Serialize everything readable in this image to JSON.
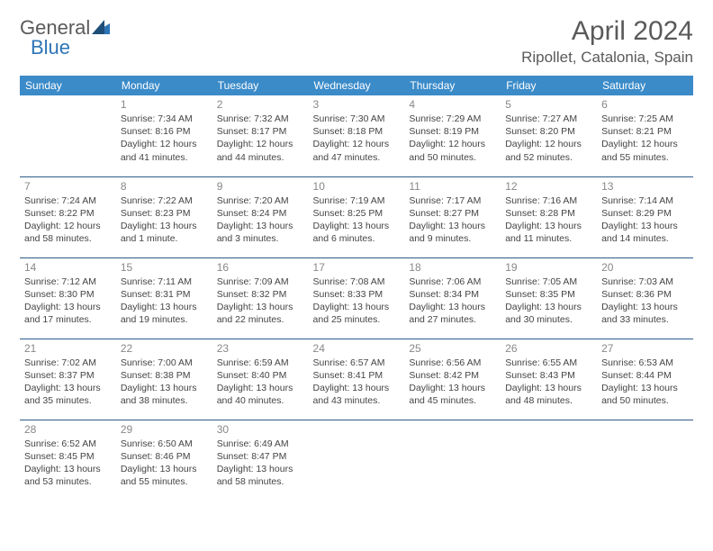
{
  "logo": {
    "text1": "General",
    "text2": "Blue"
  },
  "title": "April 2024",
  "location": "Ripollet, Catalonia, Spain",
  "colors": {
    "header_bg": "#3b8bc9",
    "header_text": "#ffffff",
    "border": "#2e5c8a",
    "daynum": "#888888",
    "body_text": "#444444",
    "logo_gray": "#5a5a5a",
    "logo_blue": "#2e75b6",
    "background": "#ffffff"
  },
  "day_headers": [
    "Sunday",
    "Monday",
    "Tuesday",
    "Wednesday",
    "Thursday",
    "Friday",
    "Saturday"
  ],
  "weeks": [
    [
      null,
      {
        "n": "1",
        "sr": "Sunrise: 7:34 AM",
        "ss": "Sunset: 8:16 PM",
        "dl1": "Daylight: 12 hours",
        "dl2": "and 41 minutes."
      },
      {
        "n": "2",
        "sr": "Sunrise: 7:32 AM",
        "ss": "Sunset: 8:17 PM",
        "dl1": "Daylight: 12 hours",
        "dl2": "and 44 minutes."
      },
      {
        "n": "3",
        "sr": "Sunrise: 7:30 AM",
        "ss": "Sunset: 8:18 PM",
        "dl1": "Daylight: 12 hours",
        "dl2": "and 47 minutes."
      },
      {
        "n": "4",
        "sr": "Sunrise: 7:29 AM",
        "ss": "Sunset: 8:19 PM",
        "dl1": "Daylight: 12 hours",
        "dl2": "and 50 minutes."
      },
      {
        "n": "5",
        "sr": "Sunrise: 7:27 AM",
        "ss": "Sunset: 8:20 PM",
        "dl1": "Daylight: 12 hours",
        "dl2": "and 52 minutes."
      },
      {
        "n": "6",
        "sr": "Sunrise: 7:25 AM",
        "ss": "Sunset: 8:21 PM",
        "dl1": "Daylight: 12 hours",
        "dl2": "and 55 minutes."
      }
    ],
    [
      {
        "n": "7",
        "sr": "Sunrise: 7:24 AM",
        "ss": "Sunset: 8:22 PM",
        "dl1": "Daylight: 12 hours",
        "dl2": "and 58 minutes."
      },
      {
        "n": "8",
        "sr": "Sunrise: 7:22 AM",
        "ss": "Sunset: 8:23 PM",
        "dl1": "Daylight: 13 hours",
        "dl2": "and 1 minute."
      },
      {
        "n": "9",
        "sr": "Sunrise: 7:20 AM",
        "ss": "Sunset: 8:24 PM",
        "dl1": "Daylight: 13 hours",
        "dl2": "and 3 minutes."
      },
      {
        "n": "10",
        "sr": "Sunrise: 7:19 AM",
        "ss": "Sunset: 8:25 PM",
        "dl1": "Daylight: 13 hours",
        "dl2": "and 6 minutes."
      },
      {
        "n": "11",
        "sr": "Sunrise: 7:17 AM",
        "ss": "Sunset: 8:27 PM",
        "dl1": "Daylight: 13 hours",
        "dl2": "and 9 minutes."
      },
      {
        "n": "12",
        "sr": "Sunrise: 7:16 AM",
        "ss": "Sunset: 8:28 PM",
        "dl1": "Daylight: 13 hours",
        "dl2": "and 11 minutes."
      },
      {
        "n": "13",
        "sr": "Sunrise: 7:14 AM",
        "ss": "Sunset: 8:29 PM",
        "dl1": "Daylight: 13 hours",
        "dl2": "and 14 minutes."
      }
    ],
    [
      {
        "n": "14",
        "sr": "Sunrise: 7:12 AM",
        "ss": "Sunset: 8:30 PM",
        "dl1": "Daylight: 13 hours",
        "dl2": "and 17 minutes."
      },
      {
        "n": "15",
        "sr": "Sunrise: 7:11 AM",
        "ss": "Sunset: 8:31 PM",
        "dl1": "Daylight: 13 hours",
        "dl2": "and 19 minutes."
      },
      {
        "n": "16",
        "sr": "Sunrise: 7:09 AM",
        "ss": "Sunset: 8:32 PM",
        "dl1": "Daylight: 13 hours",
        "dl2": "and 22 minutes."
      },
      {
        "n": "17",
        "sr": "Sunrise: 7:08 AM",
        "ss": "Sunset: 8:33 PM",
        "dl1": "Daylight: 13 hours",
        "dl2": "and 25 minutes."
      },
      {
        "n": "18",
        "sr": "Sunrise: 7:06 AM",
        "ss": "Sunset: 8:34 PM",
        "dl1": "Daylight: 13 hours",
        "dl2": "and 27 minutes."
      },
      {
        "n": "19",
        "sr": "Sunrise: 7:05 AM",
        "ss": "Sunset: 8:35 PM",
        "dl1": "Daylight: 13 hours",
        "dl2": "and 30 minutes."
      },
      {
        "n": "20",
        "sr": "Sunrise: 7:03 AM",
        "ss": "Sunset: 8:36 PM",
        "dl1": "Daylight: 13 hours",
        "dl2": "and 33 minutes."
      }
    ],
    [
      {
        "n": "21",
        "sr": "Sunrise: 7:02 AM",
        "ss": "Sunset: 8:37 PM",
        "dl1": "Daylight: 13 hours",
        "dl2": "and 35 minutes."
      },
      {
        "n": "22",
        "sr": "Sunrise: 7:00 AM",
        "ss": "Sunset: 8:38 PM",
        "dl1": "Daylight: 13 hours",
        "dl2": "and 38 minutes."
      },
      {
        "n": "23",
        "sr": "Sunrise: 6:59 AM",
        "ss": "Sunset: 8:40 PM",
        "dl1": "Daylight: 13 hours",
        "dl2": "and 40 minutes."
      },
      {
        "n": "24",
        "sr": "Sunrise: 6:57 AM",
        "ss": "Sunset: 8:41 PM",
        "dl1": "Daylight: 13 hours",
        "dl2": "and 43 minutes."
      },
      {
        "n": "25",
        "sr": "Sunrise: 6:56 AM",
        "ss": "Sunset: 8:42 PM",
        "dl1": "Daylight: 13 hours",
        "dl2": "and 45 minutes."
      },
      {
        "n": "26",
        "sr": "Sunrise: 6:55 AM",
        "ss": "Sunset: 8:43 PM",
        "dl1": "Daylight: 13 hours",
        "dl2": "and 48 minutes."
      },
      {
        "n": "27",
        "sr": "Sunrise: 6:53 AM",
        "ss": "Sunset: 8:44 PM",
        "dl1": "Daylight: 13 hours",
        "dl2": "and 50 minutes."
      }
    ],
    [
      {
        "n": "28",
        "sr": "Sunrise: 6:52 AM",
        "ss": "Sunset: 8:45 PM",
        "dl1": "Daylight: 13 hours",
        "dl2": "and 53 minutes."
      },
      {
        "n": "29",
        "sr": "Sunrise: 6:50 AM",
        "ss": "Sunset: 8:46 PM",
        "dl1": "Daylight: 13 hours",
        "dl2": "and 55 minutes."
      },
      {
        "n": "30",
        "sr": "Sunrise: 6:49 AM",
        "ss": "Sunset: 8:47 PM",
        "dl1": "Daylight: 13 hours",
        "dl2": "and 58 minutes."
      },
      null,
      null,
      null,
      null
    ]
  ]
}
